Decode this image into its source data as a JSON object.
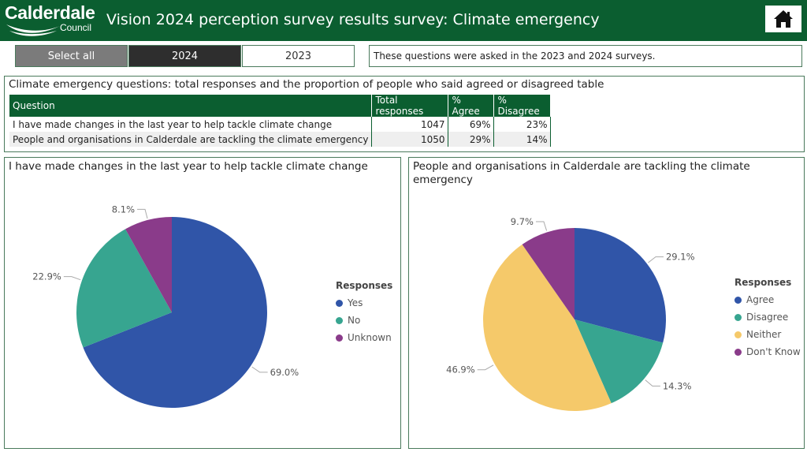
{
  "header": {
    "logo_text": "Calderdale",
    "logo_sub": "Council",
    "title": "Vision 2024 perception survey results survey: Climate emergency",
    "home_icon": "home-icon"
  },
  "slicers": {
    "select_all": "Select all",
    "year_2024": "2024",
    "year_2023": "2023"
  },
  "info_text": "These questions were asked in the 2023 and 2024 surveys.",
  "table": {
    "title": "Climate emergency questions: total responses and the proportion of people who said agreed or disagreed table",
    "headers": [
      "Question",
      "Total responses",
      "% Agree",
      "% Disagree"
    ],
    "rows": [
      [
        "I have made changes in the last year to help tackle climate change",
        "1047",
        "69%",
        "23%"
      ],
      [
        "People and organisations in Calderdale are tackling the climate emergency",
        "1050",
        "29%",
        "14%"
      ]
    ]
  },
  "colors": {
    "brand_green": "#0b5e30",
    "blue": "#3055a8",
    "teal": "#37a590",
    "purple": "#8a3b8a",
    "yellow": "#f5c96a"
  },
  "chart_data": [
    {
      "type": "pie",
      "title": "I have made changes in the last year to help tackle climate change",
      "legend_title": "Responses",
      "legend_position": "right",
      "slices": [
        {
          "name": "Yes",
          "value": 69.0,
          "label": "69.0%",
          "color": "#3055a8"
        },
        {
          "name": "No",
          "value": 22.9,
          "label": "22.9%",
          "color": "#37a590"
        },
        {
          "name": "Unknown",
          "value": 8.1,
          "label": "8.1%",
          "color": "#8a3b8a"
        }
      ]
    },
    {
      "type": "pie",
      "title": "People and organisations in Calderdale are tackling the climate emergency",
      "legend_title": "Responses",
      "legend_position": "right",
      "slices": [
        {
          "name": "Agree",
          "value": 29.1,
          "label": "29.1%",
          "color": "#3055a8"
        },
        {
          "name": "Disagree",
          "value": 14.3,
          "label": "14.3%",
          "color": "#37a590"
        },
        {
          "name": "Neither",
          "value": 46.9,
          "label": "46.9%",
          "color": "#f5c96a"
        },
        {
          "name": "Don't Know",
          "value": 9.7,
          "label": "9.7%",
          "color": "#8a3b8a"
        }
      ]
    }
  ]
}
